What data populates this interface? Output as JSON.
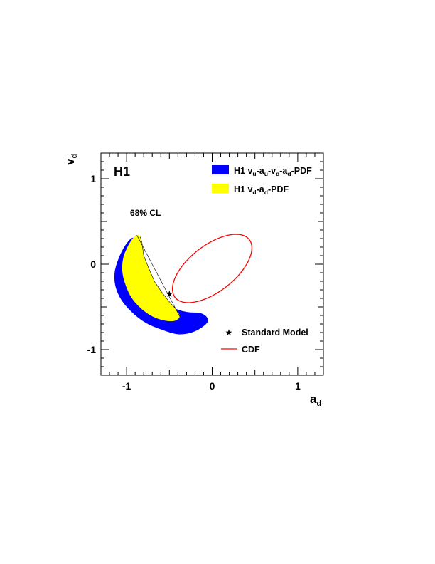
{
  "chart_data": {
    "type": "contour",
    "experiment": "H1",
    "confidence_label": "68% CL",
    "xlabel": "a",
    "xlabel_sub": "d",
    "ylabel": "v",
    "ylabel_sub": "d",
    "xlim": [
      -1.3,
      1.3
    ],
    "ylim": [
      -1.3,
      1.3
    ],
    "x_ticks": [
      -1,
      0,
      1
    ],
    "y_ticks": [
      -1,
      0,
      1
    ],
    "x_tick_labels": [
      "-1",
      "0",
      "1"
    ],
    "y_tick_labels": [
      "-1",
      "0",
      "1"
    ],
    "legend_placement": "top-right",
    "series": [
      {
        "name": "H1 vu-au-vd-ad-PDF",
        "legend_parts": [
          [
            "H1 v",
            ""
          ],
          [
            "u",
            "sub"
          ],
          [
            "-a",
            ""
          ],
          [
            "u",
            "sub"
          ],
          [
            "-v",
            ""
          ],
          [
            "d",
            "sub"
          ],
          [
            "-a",
            ""
          ],
          [
            "d",
            "sub"
          ],
          [
            "-PDF",
            ""
          ]
        ],
        "kind": "filled",
        "color": "#0000ff",
        "points": [
          [
            -0.92,
            0.31
          ],
          [
            -0.97,
            0.28
          ],
          [
            -1.04,
            0.18
          ],
          [
            -1.1,
            0.05
          ],
          [
            -1.14,
            -0.1
          ],
          [
            -1.13,
            -0.26
          ],
          [
            -1.06,
            -0.42
          ],
          [
            -0.93,
            -0.57
          ],
          [
            -0.77,
            -0.69
          ],
          [
            -0.58,
            -0.77
          ],
          [
            -0.4,
            -0.82
          ],
          [
            -0.24,
            -0.8
          ],
          [
            -0.12,
            -0.74
          ],
          [
            -0.05,
            -0.67
          ],
          [
            -0.07,
            -0.61
          ],
          [
            -0.15,
            -0.57
          ],
          [
            -0.29,
            -0.56
          ],
          [
            -0.43,
            -0.52
          ],
          [
            -0.53,
            -0.44
          ],
          [
            -0.63,
            -0.31
          ],
          [
            -0.75,
            -0.15
          ],
          [
            -0.82,
            0.02
          ],
          [
            -0.86,
            0.18
          ],
          [
            -0.88,
            0.28
          ]
        ]
      },
      {
        "name": "H1 vd-ad-PDF",
        "legend_parts": [
          [
            "H1 v",
            ""
          ],
          [
            "d",
            "sub"
          ],
          [
            "-a",
            ""
          ],
          [
            "d",
            "sub"
          ],
          [
            "-PDF",
            ""
          ]
        ],
        "kind": "filled",
        "color": "#ffff00",
        "points": [
          [
            -0.88,
            0.34
          ],
          [
            -0.93,
            0.3
          ],
          [
            -0.99,
            0.2
          ],
          [
            -1.04,
            0.07
          ],
          [
            -1.05,
            -0.08
          ],
          [
            -1.02,
            -0.22
          ],
          [
            -0.95,
            -0.38
          ],
          [
            -0.84,
            -0.51
          ],
          [
            -0.7,
            -0.61
          ],
          [
            -0.55,
            -0.66
          ],
          [
            -0.43,
            -0.66
          ],
          [
            -0.38,
            -0.61
          ],
          [
            -0.42,
            -0.53
          ],
          [
            -0.5,
            -0.44
          ],
          [
            -0.58,
            -0.34
          ],
          [
            -0.67,
            -0.21
          ],
          [
            -0.74,
            -0.05
          ],
          [
            -0.8,
            0.1
          ],
          [
            -0.82,
            0.25
          ],
          [
            -0.84,
            0.32
          ]
        ]
      },
      {
        "name": "CDF",
        "kind": "ellipse",
        "color": "#ff0000",
        "center": [
          0.0,
          -0.05
        ],
        "semi_major": 0.55,
        "semi_minor": 0.27,
        "angle_deg": 38
      }
    ],
    "markers": [
      {
        "name": "Standard Model",
        "symbol": "★",
        "x": -0.5,
        "y": -0.34,
        "color": "#000000"
      }
    ]
  }
}
